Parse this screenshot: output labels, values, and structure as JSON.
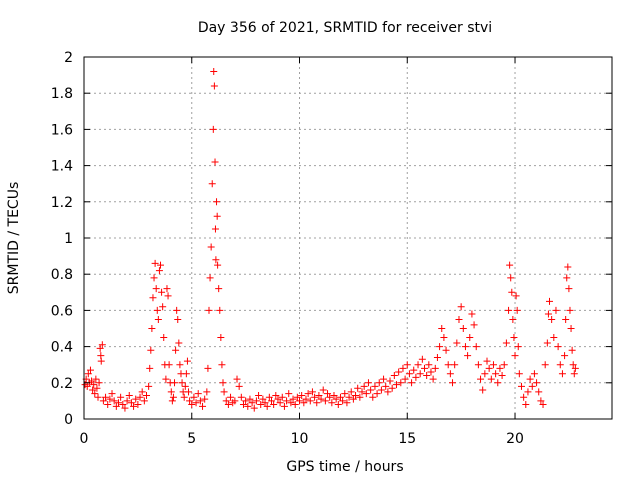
{
  "chart_data": {
    "type": "scatter",
    "title": "Day 356 of 2021, SRMTID for receiver stvi",
    "xlabel": "GPS time / hours",
    "ylabel": "SRMTID / TECUs",
    "xlim": [
      0,
      24.5
    ],
    "ylim": [
      0,
      2
    ],
    "x_ticks": [
      0,
      5,
      10,
      15,
      20
    ],
    "x_tick_labels": [
      "0",
      "5",
      "10",
      "15",
      "20"
    ],
    "y_ticks": [
      0,
      0.2,
      0.4,
      0.6,
      0.8,
      1,
      1.2,
      1.4,
      1.6,
      1.8,
      2
    ],
    "y_tick_labels": [
      "0",
      "0.2",
      "0.4",
      "0.6",
      "0.8",
      "1",
      "1.2",
      "1.4",
      "1.6",
      "1.8",
      "2"
    ],
    "grid": true,
    "marker": "+",
    "marker_color": "#ff0000",
    "series": [
      {
        "name": "stvi",
        "points": [
          [
            0.05,
            0.19
          ],
          [
            0.1,
            0.22
          ],
          [
            0.15,
            0.18
          ],
          [
            0.2,
            0.25
          ],
          [
            0.25,
            0.2
          ],
          [
            0.3,
            0.27
          ],
          [
            0.35,
            0.21
          ],
          [
            0.4,
            0.16
          ],
          [
            0.45,
            0.19
          ],
          [
            0.5,
            0.14
          ],
          [
            0.55,
            0.22
          ],
          [
            0.6,
            0.17
          ],
          [
            0.65,
            0.12
          ],
          [
            0.7,
            0.2
          ],
          [
            0.75,
            0.39
          ],
          [
            0.78,
            0.35
          ],
          [
            0.8,
            0.32
          ],
          [
            0.85,
            0.41
          ],
          [
            0.9,
            0.1
          ],
          [
            1.0,
            0.12
          ],
          [
            1.1,
            0.08
          ],
          [
            1.2,
            0.11
          ],
          [
            1.3,
            0.14
          ],
          [
            1.4,
            0.1
          ],
          [
            1.5,
            0.07
          ],
          [
            1.6,
            0.09
          ],
          [
            1.7,
            0.12
          ],
          [
            1.8,
            0.08
          ],
          [
            1.9,
            0.06
          ],
          [
            2.0,
            0.1
          ],
          [
            2.1,
            0.13
          ],
          [
            2.2,
            0.09
          ],
          [
            2.3,
            0.07
          ],
          [
            2.4,
            0.11
          ],
          [
            2.5,
            0.08
          ],
          [
            2.6,
            0.12
          ],
          [
            2.7,
            0.15
          ],
          [
            2.8,
            0.1
          ],
          [
            2.9,
            0.13
          ],
          [
            3.0,
            0.18
          ],
          [
            3.05,
            0.28
          ],
          [
            3.1,
            0.38
          ],
          [
            3.15,
            0.5
          ],
          [
            3.2,
            0.67
          ],
          [
            3.25,
            0.78
          ],
          [
            3.3,
            0.86
          ],
          [
            3.35,
            0.72
          ],
          [
            3.4,
            0.6
          ],
          [
            3.45,
            0.55
          ],
          [
            3.5,
            0.82
          ],
          [
            3.55,
            0.85
          ],
          [
            3.6,
            0.7
          ],
          [
            3.65,
            0.62
          ],
          [
            3.7,
            0.45
          ],
          [
            3.75,
            0.3
          ],
          [
            3.8,
            0.22
          ],
          [
            3.85,
            0.72
          ],
          [
            3.9,
            0.68
          ],
          [
            3.95,
            0.3
          ],
          [
            4.0,
            0.2
          ],
          [
            4.05,
            0.15
          ],
          [
            4.1,
            0.1
          ],
          [
            4.15,
            0.12
          ],
          [
            4.2,
            0.2
          ],
          [
            4.25,
            0.38
          ],
          [
            4.3,
            0.6
          ],
          [
            4.35,
            0.55
          ],
          [
            4.4,
            0.42
          ],
          [
            4.45,
            0.3
          ],
          [
            4.5,
            0.25
          ],
          [
            4.55,
            0.2
          ],
          [
            4.6,
            0.15
          ],
          [
            4.65,
            0.12
          ],
          [
            4.7,
            0.18
          ],
          [
            4.75,
            0.25
          ],
          [
            4.8,
            0.32
          ],
          [
            4.85,
            0.15
          ],
          [
            4.9,
            0.1
          ],
          [
            5.0,
            0.08
          ],
          [
            5.1,
            0.12
          ],
          [
            5.2,
            0.09
          ],
          [
            5.3,
            0.14
          ],
          [
            5.4,
            0.1
          ],
          [
            5.5,
            0.07
          ],
          [
            5.6,
            0.11
          ],
          [
            5.7,
            0.15
          ],
          [
            5.75,
            0.28
          ],
          [
            5.8,
            0.6
          ],
          [
            5.85,
            0.78
          ],
          [
            5.9,
            0.95
          ],
          [
            5.95,
            1.3
          ],
          [
            6.0,
            1.6
          ],
          [
            6.02,
            1.92
          ],
          [
            6.05,
            1.84
          ],
          [
            6.08,
            1.42
          ],
          [
            6.1,
            1.05
          ],
          [
            6.12,
            0.88
          ],
          [
            6.15,
            1.2
          ],
          [
            6.18,
            1.12
          ],
          [
            6.2,
            0.85
          ],
          [
            6.25,
            0.72
          ],
          [
            6.3,
            0.6
          ],
          [
            6.35,
            0.45
          ],
          [
            6.4,
            0.3
          ],
          [
            6.45,
            0.2
          ],
          [
            6.5,
            0.15
          ],
          [
            6.6,
            0.1
          ],
          [
            6.7,
            0.08
          ],
          [
            6.8,
            0.12
          ],
          [
            6.9,
            0.09
          ],
          [
            7.0,
            0.1
          ],
          [
            7.1,
            0.22
          ],
          [
            7.2,
            0.18
          ],
          [
            7.3,
            0.12
          ],
          [
            7.4,
            0.08
          ],
          [
            7.5,
            0.1
          ],
          [
            7.6,
            0.07
          ],
          [
            7.7,
            0.11
          ],
          [
            7.8,
            0.09
          ],
          [
            7.9,
            0.06
          ],
          [
            8.0,
            0.1
          ],
          [
            8.1,
            0.13
          ],
          [
            8.2,
            0.08
          ],
          [
            8.3,
            0.11
          ],
          [
            8.4,
            0.09
          ],
          [
            8.5,
            0.07
          ],
          [
            8.6,
            0.12
          ],
          [
            8.7,
            0.1
          ],
          [
            8.8,
            0.08
          ],
          [
            8.9,
            0.13
          ],
          [
            9.0,
            0.11
          ],
          [
            9.1,
            0.09
          ],
          [
            9.2,
            0.12
          ],
          [
            9.3,
            0.07
          ],
          [
            9.4,
            0.1
          ],
          [
            9.5,
            0.14
          ],
          [
            9.6,
            0.09
          ],
          [
            9.7,
            0.11
          ],
          [
            9.8,
            0.08
          ],
          [
            9.9,
            0.12
          ],
          [
            10.0,
            0.1
          ],
          [
            10.1,
            0.13
          ],
          [
            10.2,
            0.09
          ],
          [
            10.3,
            0.11
          ],
          [
            10.4,
            0.14
          ],
          [
            10.5,
            0.1
          ],
          [
            10.6,
            0.15
          ],
          [
            10.7,
            0.12
          ],
          [
            10.8,
            0.09
          ],
          [
            10.9,
            0.13
          ],
          [
            11.0,
            0.11
          ],
          [
            11.1,
            0.16
          ],
          [
            11.2,
            0.1
          ],
          [
            11.3,
            0.14
          ],
          [
            11.4,
            0.12
          ],
          [
            11.5,
            0.09
          ],
          [
            11.6,
            0.13
          ],
          [
            11.7,
            0.11
          ],
          [
            11.8,
            0.08
          ],
          [
            11.9,
            0.12
          ],
          [
            12.0,
            0.1
          ],
          [
            12.1,
            0.14
          ],
          [
            12.2,
            0.09
          ],
          [
            12.3,
            0.12
          ],
          [
            12.4,
            0.15
          ],
          [
            12.5,
            0.11
          ],
          [
            12.6,
            0.13
          ],
          [
            12.7,
            0.17
          ],
          [
            12.8,
            0.12
          ],
          [
            12.9,
            0.15
          ],
          [
            13.0,
            0.18
          ],
          [
            13.1,
            0.14
          ],
          [
            13.2,
            0.2
          ],
          [
            13.3,
            0.16
          ],
          [
            13.4,
            0.12
          ],
          [
            13.5,
            0.18
          ],
          [
            13.6,
            0.14
          ],
          [
            13.7,
            0.2
          ],
          [
            13.8,
            0.16
          ],
          [
            13.9,
            0.22
          ],
          [
            14.0,
            0.18
          ],
          [
            14.1,
            0.15
          ],
          [
            14.2,
            0.21
          ],
          [
            14.3,
            0.17
          ],
          [
            14.4,
            0.24
          ],
          [
            14.5,
            0.19
          ],
          [
            14.6,
            0.26
          ],
          [
            14.7,
            0.2
          ],
          [
            14.8,
            0.28
          ],
          [
            14.9,
            0.22
          ],
          [
            15.0,
            0.3
          ],
          [
            15.1,
            0.25
          ],
          [
            15.2,
            0.2
          ],
          [
            15.3,
            0.27
          ],
          [
            15.4,
            0.23
          ],
          [
            15.5,
            0.3
          ],
          [
            15.6,
            0.25
          ],
          [
            15.7,
            0.33
          ],
          [
            15.8,
            0.28
          ],
          [
            15.9,
            0.24
          ],
          [
            16.0,
            0.3
          ],
          [
            16.1,
            0.26
          ],
          [
            16.2,
            0.22
          ],
          [
            16.3,
            0.28
          ],
          [
            16.4,
            0.34
          ],
          [
            16.5,
            0.4
          ],
          [
            16.6,
            0.5
          ],
          [
            16.7,
            0.45
          ],
          [
            16.8,
            0.38
          ],
          [
            16.9,
            0.3
          ],
          [
            17.0,
            0.25
          ],
          [
            17.1,
            0.2
          ],
          [
            17.2,
            0.3
          ],
          [
            17.3,
            0.42
          ],
          [
            17.4,
            0.55
          ],
          [
            17.5,
            0.62
          ],
          [
            17.6,
            0.5
          ],
          [
            17.7,
            0.4
          ],
          [
            17.8,
            0.35
          ],
          [
            17.9,
            0.45
          ],
          [
            18.0,
            0.58
          ],
          [
            18.1,
            0.52
          ],
          [
            18.2,
            0.4
          ],
          [
            18.3,
            0.3
          ],
          [
            18.4,
            0.22
          ],
          [
            18.5,
            0.16
          ],
          [
            18.6,
            0.25
          ],
          [
            18.7,
            0.32
          ],
          [
            18.8,
            0.28
          ],
          [
            18.9,
            0.22
          ],
          [
            19.0,
            0.3
          ],
          [
            19.1,
            0.25
          ],
          [
            19.2,
            0.2
          ],
          [
            19.3,
            0.28
          ],
          [
            19.4,
            0.24
          ],
          [
            19.5,
            0.3
          ],
          [
            19.6,
            0.42
          ],
          [
            19.7,
            0.6
          ],
          [
            19.75,
            0.85
          ],
          [
            19.8,
            0.78
          ],
          [
            19.85,
            0.7
          ],
          [
            19.9,
            0.55
          ],
          [
            19.95,
            0.45
          ],
          [
            20.0,
            0.35
          ],
          [
            20.05,
            0.68
          ],
          [
            20.1,
            0.6
          ],
          [
            20.15,
            0.4
          ],
          [
            20.2,
            0.25
          ],
          [
            20.3,
            0.18
          ],
          [
            20.4,
            0.12
          ],
          [
            20.5,
            0.08
          ],
          [
            20.6,
            0.15
          ],
          [
            20.7,
            0.22
          ],
          [
            20.8,
            0.18
          ],
          [
            20.9,
            0.25
          ],
          [
            21.0,
            0.2
          ],
          [
            21.1,
            0.15
          ],
          [
            21.2,
            0.1
          ],
          [
            21.3,
            0.08
          ],
          [
            21.4,
            0.3
          ],
          [
            21.5,
            0.42
          ],
          [
            21.55,
            0.58
          ],
          [
            21.6,
            0.65
          ],
          [
            21.7,
            0.55
          ],
          [
            21.8,
            0.45
          ],
          [
            21.9,
            0.6
          ],
          [
            22.0,
            0.4
          ],
          [
            22.1,
            0.3
          ],
          [
            22.2,
            0.25
          ],
          [
            22.3,
            0.35
          ],
          [
            22.35,
            0.55
          ],
          [
            22.4,
            0.78
          ],
          [
            22.45,
            0.84
          ],
          [
            22.5,
            0.72
          ],
          [
            22.55,
            0.6
          ],
          [
            22.6,
            0.5
          ],
          [
            22.65,
            0.38
          ],
          [
            22.7,
            0.3
          ],
          [
            22.75,
            0.25
          ],
          [
            22.8,
            0.28
          ]
        ]
      }
    ]
  }
}
